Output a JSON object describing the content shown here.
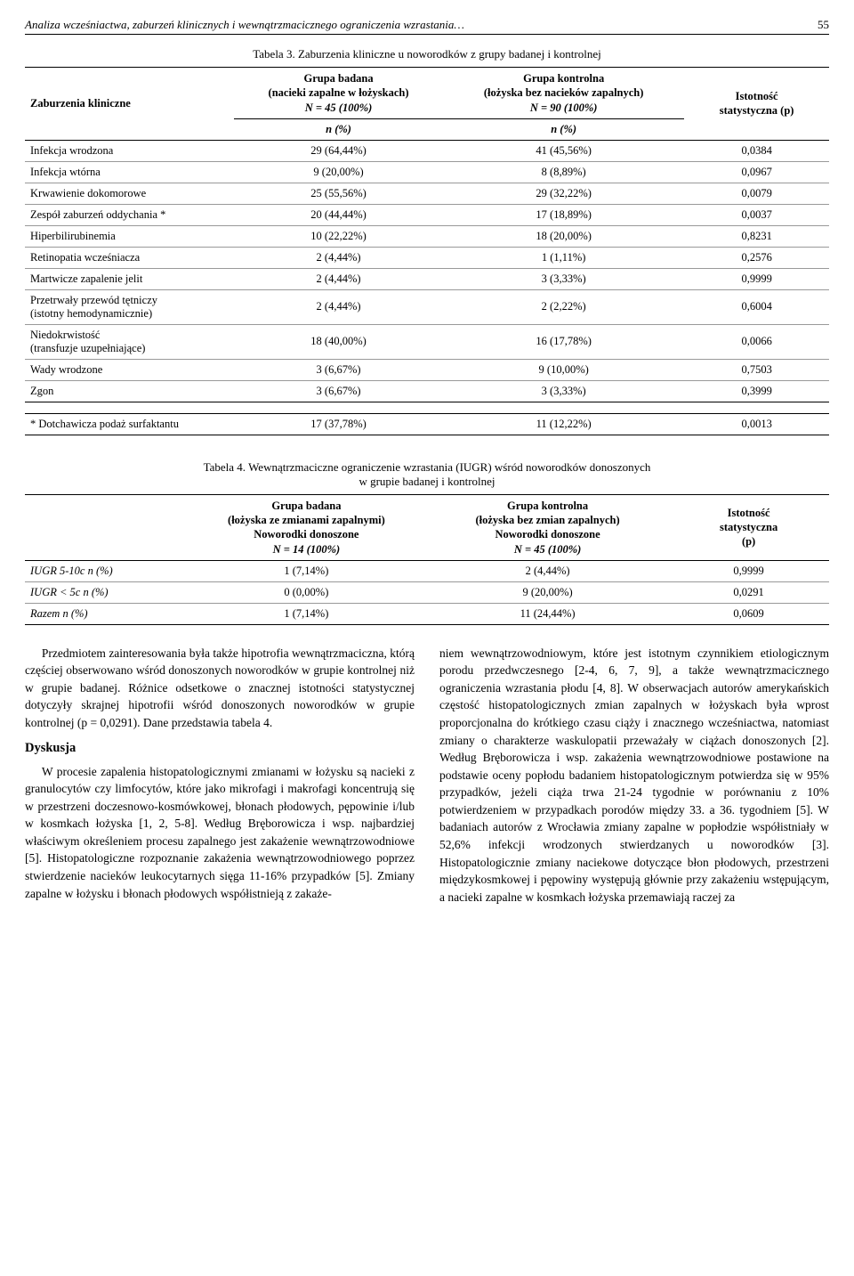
{
  "page": {
    "running_title": "Analiza wcześniactwa, zaburzeń klinicznych i wewnątrzmacicznego ograniczenia wzrastania…",
    "page_number": "55"
  },
  "table3": {
    "caption": "Tabela 3. Zaburzenia kliniczne u noworodków z grupy badanej i kontrolnej",
    "col_left": "Zaburzenia kliniczne",
    "col_badana_1": "Grupa badana",
    "col_badana_2": "(nacieki zapalne w łożyskach)",
    "col_badana_3": "N = 45 (100%)",
    "col_kontrol_1": "Grupa kontrolna",
    "col_kontrol_2": "(łożyska bez nacieków zapalnych)",
    "col_kontrol_3": "N = 90 (100%)",
    "col_p_1": "Istotność",
    "col_p_2": "statystyczna (p)",
    "sub_n": "n (%)",
    "rows": [
      {
        "label": "Infekcja wrodzona",
        "a": "29 (64,44%)",
        "b": "41 (45,56%)",
        "p": "0,0384"
      },
      {
        "label": "Infekcja wtórna",
        "a": "9 (20,00%)",
        "b": "8 (8,89%)",
        "p": "0,0967"
      },
      {
        "label": "Krwawienie dokomorowe",
        "a": "25 (55,56%)",
        "b": "29 (32,22%)",
        "p": "0,0079"
      },
      {
        "label": "Zespół zaburzeń oddychania *",
        "a": "20 (44,44%)",
        "b": "17 (18,89%)",
        "p": "0,0037"
      },
      {
        "label": "Hiperbilirubinemia",
        "a": "10 (22,22%)",
        "b": "18 (20,00%)",
        "p": "0,8231"
      },
      {
        "label": "Retinopatia wcześniacza",
        "a": "2 (4,44%)",
        "b": "1 (1,11%)",
        "p": "0,2576"
      },
      {
        "label": "Martwicze zapalenie jelit",
        "a": "2 (4,44%)",
        "b": "3 (3,33%)",
        "p": "0,9999"
      },
      {
        "label": "Przetrwały przewód tętniczy\n(istotny hemodynamicznie)",
        "a": "2 (4,44%)",
        "b": "2 (2,22%)",
        "p": "0,6004"
      },
      {
        "label": "Niedokrwistość\n(transfuzje uzupełniające)",
        "a": "18 (40,00%)",
        "b": "16 (17,78%)",
        "p": "0,0066"
      },
      {
        "label": "Wady wrodzone",
        "a": "3 (6,67%)",
        "b": "9 (10,00%)",
        "p": "0,7503"
      },
      {
        "label": "Zgon",
        "a": "3 (6,67%)",
        "b": "3 (3,33%)",
        "p": "0,3999"
      }
    ],
    "footnote_row": {
      "label": "* Dotchawicza podaż surfaktantu",
      "a": "17 (37,78%)",
      "b": "11 (12,22%)",
      "p": "0,0013"
    }
  },
  "table4": {
    "caption": "Tabela 4. Wewnątrzmaciczne ograniczenie wzrastania (IUGR) wśród noworodków donoszonych\nw grupie badanej i kontrolnej",
    "col_badana_1": "Grupa badana",
    "col_badana_2": "(łożyska ze zmianami zapalnymi)",
    "col_badana_3": "Noworodki donoszone",
    "col_badana_4": "N = 14 (100%)",
    "col_kontrol_1": "Grupa kontrolna",
    "col_kontrol_2": "(łożyska bez zmian zapalnych)",
    "col_kontrol_3": "Noworodki donoszone",
    "col_kontrol_4": "N = 45 (100%)",
    "col_p_1": "Istotność",
    "col_p_2": "statystyczna",
    "col_p_3": "(p)",
    "rows": [
      {
        "label": "IUGR 5-10c  n (%)",
        "a": "1 (7,14%)",
        "b": "2 (4,44%)",
        "p": "0,9999"
      },
      {
        "label": "IUGR < 5c  n (%)",
        "a": "0 (0,00%)",
        "b": "9 (20,00%)",
        "p": "0,0291"
      },
      {
        "label": "Razem  n (%)",
        "a": "1 (7,14%)",
        "b": "11 (24,44%)",
        "p": "0,0609"
      }
    ]
  },
  "body": {
    "left_p1": "Przedmiotem zainteresowania była także hipotrofia wewnątrzmaciczna, którą częściej obserwowano wśród donoszonych noworodków w grupie kontrolnej niż w grupie badanej. Różnice odsetkowe o znacznej istotności statystycznej dotyczyły skrajnej hipotrofii wśród donoszonych noworodków w grupie kontrolnej (p = 0,0291). Dane przedstawia tabela 4.",
    "dyskusja_h": "Dyskusja",
    "left_p2": "W procesie zapalenia histopatologicznymi zmianami w łożysku są nacieki z granulocytów czy limfocytów, które jako mikrofagi i makrofagi koncentrują się w przestrzeni doczesnowo-kosmówkowej, błonach płodowych, pępowinie i/lub w kosmkach łożyska [1, 2, 5-8]. Według Bręborowicza i wsp. najbardziej właściwym określeniem procesu zapalnego jest zakażenie wewnątrzowodniowe [5]. Histopatologiczne rozpoznanie zakażenia wewnątrzowodniowego poprzez stwierdzenie nacieków leukocytarnych sięga 11-16% przypadków [5]. Zmiany zapalne w łożysku i błonach płodowych współistnieją z zakaże-",
    "right_p1": "niem wewnątrzowodniowym, które jest istotnym czynnikiem etiologicznym porodu przedwczesnego [2-4, 6, 7, 9], a także wewnątrzmacicznego ograniczenia wzrastania płodu [4, 8]. W obserwacjach autorów amerykańskich częstość histopatologicznych zmian zapalnych w łożyskach była wprost proporcjonalna do krótkiego czasu ciąży i znacznego wcześniactwa, natomiast zmiany o charakterze waskulopatii przeważały w ciążach donoszonych [2]. Według Bręborowicza i wsp. zakażenia wewnątrzowodniowe postawione na podstawie oceny popłodu badaniem histopatologicznym potwierdza się w 95% przypadków, jeżeli ciąża trwa 21-24 tygodnie w porównaniu z 10% potwierdzeniem w przypadkach porodów między 33. a 36. tygodniem [5]. W badaniach autorów z Wrocławia zmiany zapalne w popłodzie współistniały w 52,6% infekcji wrodzonych stwierdzanych u noworodków [3]. Histopatologicznie zmiany naciekowe dotyczące błon płodowych, przestrzeni międzykosmkowej i pępowiny występują głównie przy zakażeniu wstępującym, a nacieki zapalne w kosmkach łożyska przemawiają raczej za"
  }
}
